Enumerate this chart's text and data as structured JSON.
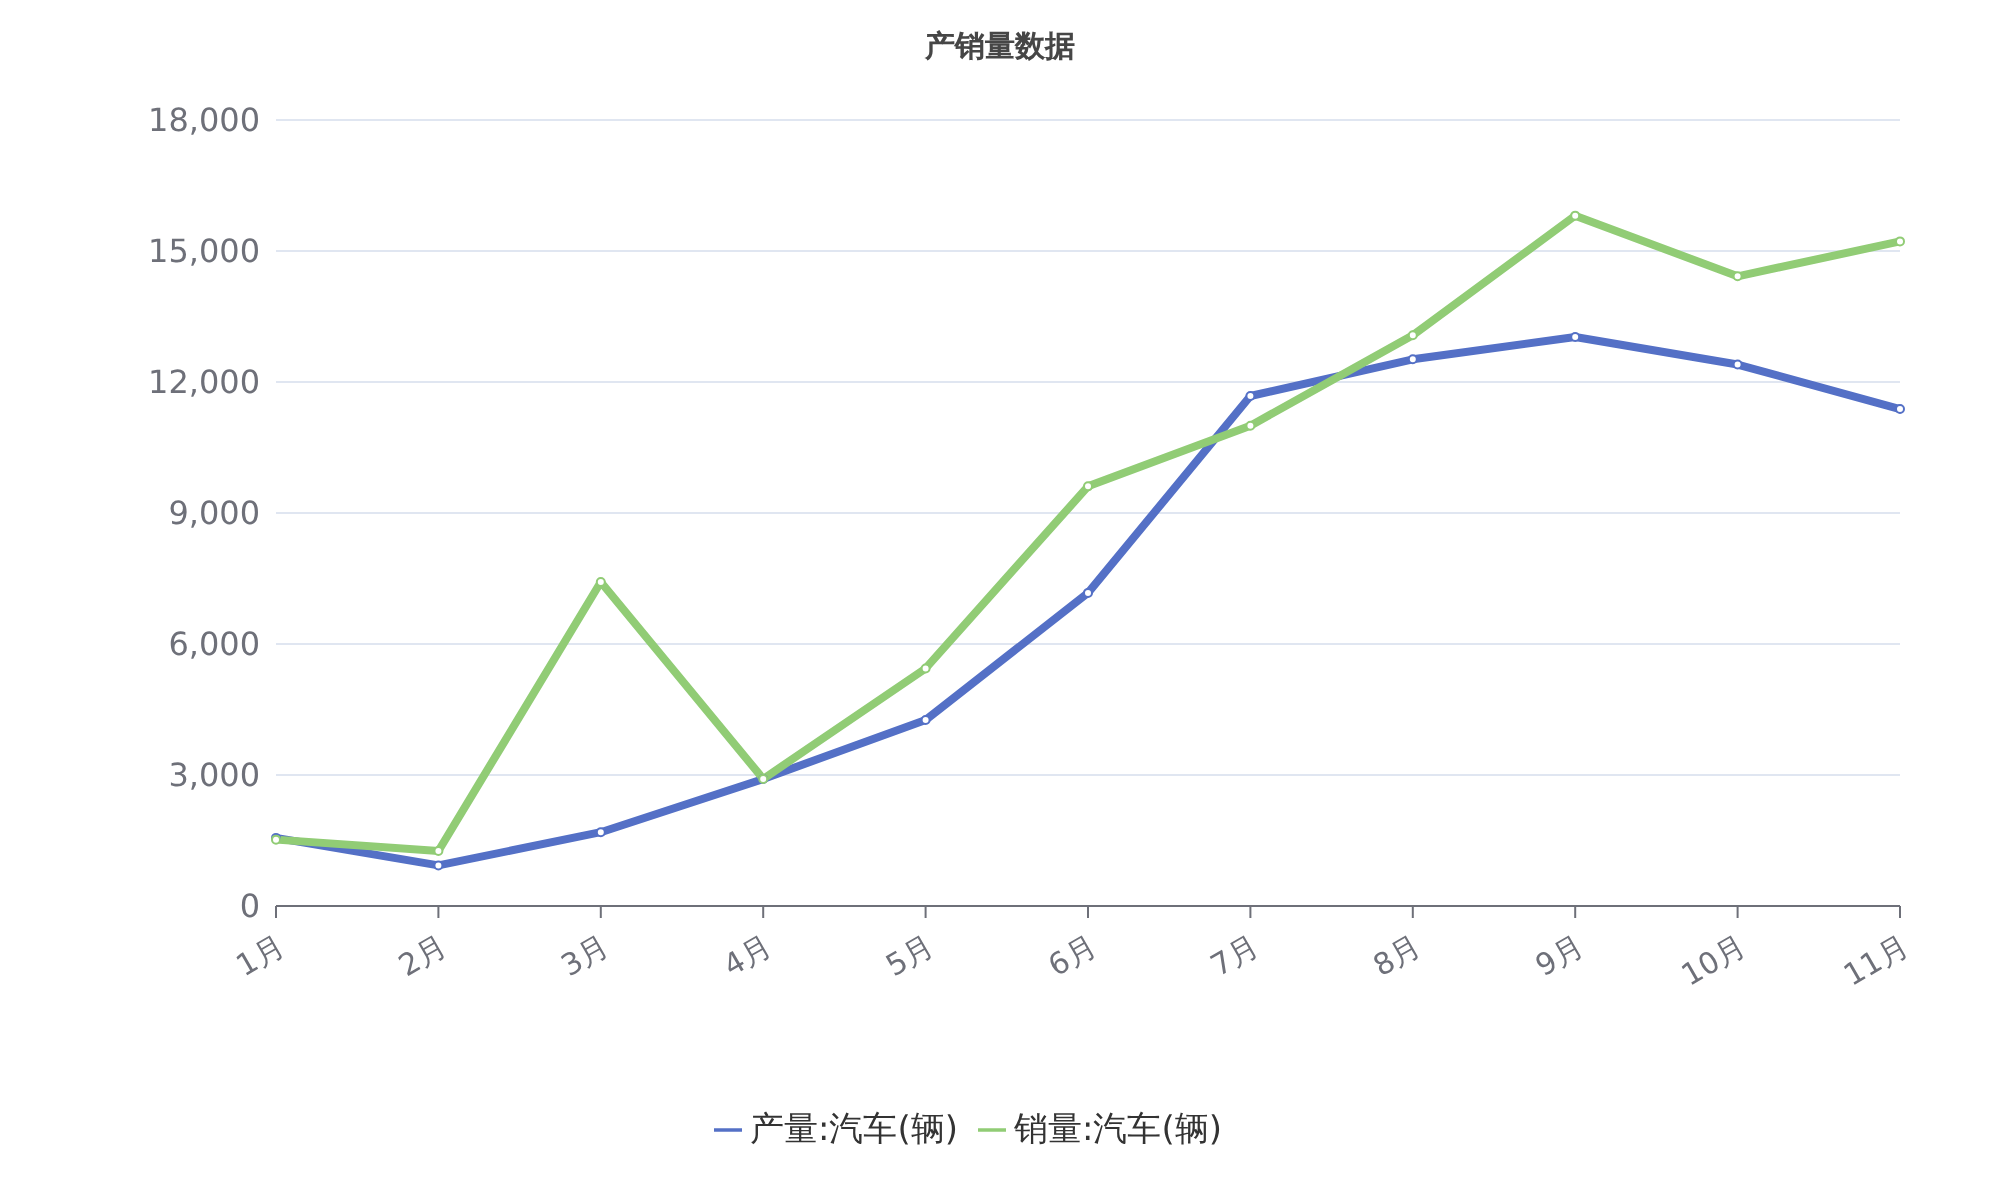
{
  "chart_data": {
    "type": "line",
    "title": "产销量数据",
    "categories": [
      "1月",
      "2月",
      "3月",
      "4月",
      "5月",
      "6月",
      "7月",
      "8月",
      "9月",
      "10月",
      "11月"
    ],
    "series": [
      {
        "name": "产量:汽车(辆)",
        "color": "#5470c6",
        "values": [
          1560,
          930,
          1690,
          2910,
          4260,
          7170,
          11680,
          12520,
          13030,
          12400,
          11380
        ]
      },
      {
        "name": "销量:汽车(辆)",
        "color": "#91cc75",
        "values": [
          1520,
          1260,
          7420,
          2910,
          5440,
          9610,
          11000,
          13070,
          15810,
          14420,
          15220
        ]
      }
    ],
    "ylim": [
      0,
      18000
    ],
    "yticks": [
      0,
      {
        "value": 3000,
        "label": "3,000"
      },
      {
        "value": 6000,
        "label": "6,000"
      },
      {
        "value": 9000,
        "label": "9,000"
      },
      {
        "value": 12000,
        "label": "12,000"
      },
      {
        "value": 15000,
        "label": "15,000"
      },
      {
        "value": 18000,
        "label": "18,000"
      }
    ],
    "grid": "y",
    "legend": "bottom",
    "marker": "circle",
    "line_style": "solid"
  }
}
